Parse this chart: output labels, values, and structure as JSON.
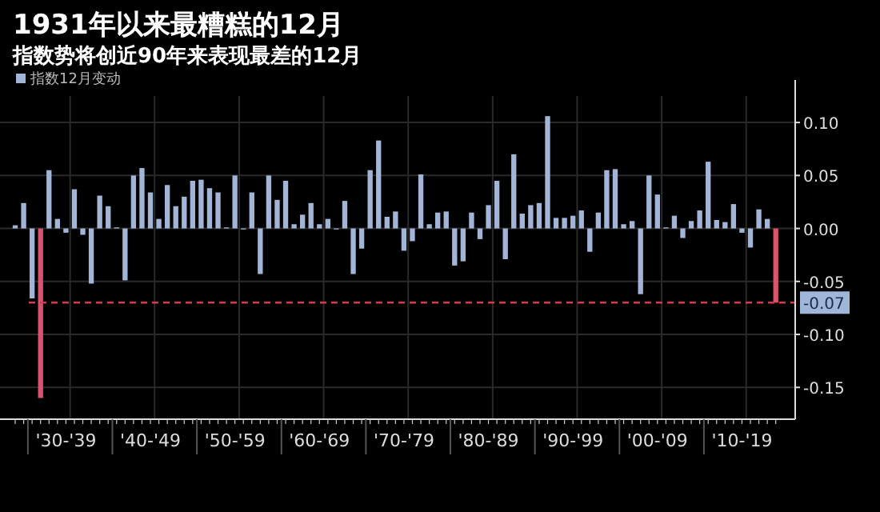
{
  "chart_data": {
    "type": "bar",
    "title": "1931年以来最糟糕的12月",
    "subtitle": "指数势将创近90年来表现最差的12月",
    "categories": [
      null,
      null,
      null,
      null,
      null,
      null,
      "'30-'39",
      null,
      null,
      null,
      null,
      null,
      null,
      null,
      null,
      null,
      "'40-'49",
      null,
      null,
      null,
      null,
      null,
      null,
      null,
      null,
      null,
      "'50-'59",
      null,
      null,
      null,
      null,
      null,
      null,
      null,
      null,
      null,
      "'60-'69",
      null,
      null,
      null,
      null,
      null,
      null,
      null,
      null,
      null,
      "'70-'79",
      null,
      null,
      null,
      null,
      null,
      null,
      null,
      null,
      null,
      "'80-'89",
      null,
      null,
      null,
      null,
      null,
      null,
      null,
      null,
      null,
      "'90-'99",
      null,
      null,
      null,
      null,
      null,
      null,
      null,
      null,
      null,
      "'00-'09",
      null,
      null,
      null,
      null,
      null,
      null,
      null,
      null,
      null,
      "'10-'19",
      null,
      null,
      null,
      null
    ],
    "series": [
      {
        "name": "指数12月变动",
        "color": "#a3b5d6",
        "values": [
          0.003,
          0.024,
          -0.066,
          -0.16,
          0.055,
          0.009,
          -0.004,
          0.037,
          -0.006,
          -0.052,
          0.031,
          0.021,
          0.001,
          -0.049,
          0.05,
          0.057,
          0.034,
          0.009,
          0.041,
          0.021,
          0.03,
          0.045,
          0.046,
          0.038,
          0.034,
          0.001,
          0.05,
          0.0,
          0.034,
          -0.043,
          0.05,
          0.027,
          0.045,
          0.004,
          0.013,
          0.024,
          0.004,
          0.009,
          0.0,
          0.026,
          -0.043,
          -0.019,
          0.055,
          0.083,
          0.011,
          0.016,
          -0.021,
          -0.012,
          0.051,
          0.004,
          0.015,
          0.016,
          -0.035,
          -0.031,
          0.015,
          -0.01,
          0.022,
          0.045,
          -0.029,
          0.07,
          0.014,
          0.022,
          0.024,
          0.106,
          0.01,
          0.01,
          0.012,
          0.017,
          -0.022,
          0.015,
          0.055,
          0.056,
          0.004,
          0.007,
          -0.062,
          0.05,
          0.032,
          0.001,
          0.012,
          -0.009,
          0.007,
          0.017,
          0.063,
          0.008,
          0.006,
          0.023,
          -0.004,
          -0.018,
          0.018,
          0.009,
          -0.07
        ],
        "colors": [
          "#a3b5d6",
          "#a3b5d6",
          "#a3b5d6",
          "#d9536e",
          "#a3b5d6",
          "#a3b5d6",
          "#a3b5d6",
          "#a3b5d6",
          "#a3b5d6",
          "#a3b5d6",
          "#a3b5d6",
          "#a3b5d6",
          "#a3b5d6",
          "#a3b5d6",
          "#a3b5d6",
          "#a3b5d6",
          "#a3b5d6",
          "#a3b5d6",
          "#a3b5d6",
          "#a3b5d6",
          "#a3b5d6",
          "#a3b5d6",
          "#a3b5d6",
          "#a3b5d6",
          "#a3b5d6",
          "#a3b5d6",
          "#a3b5d6",
          "#a3b5d6",
          "#a3b5d6",
          "#a3b5d6",
          "#a3b5d6",
          "#a3b5d6",
          "#a3b5d6",
          "#a3b5d6",
          "#a3b5d6",
          "#a3b5d6",
          "#a3b5d6",
          "#a3b5d6",
          "#a3b5d6",
          "#a3b5d6",
          "#a3b5d6",
          "#a3b5d6",
          "#a3b5d6",
          "#a3b5d6",
          "#a3b5d6",
          "#a3b5d6",
          "#a3b5d6",
          "#a3b5d6",
          "#a3b5d6",
          "#a3b5d6",
          "#a3b5d6",
          "#a3b5d6",
          "#a3b5d6",
          "#a3b5d6",
          "#a3b5d6",
          "#a3b5d6",
          "#a3b5d6",
          "#a3b5d6",
          "#a3b5d6",
          "#a3b5d6",
          "#a3b5d6",
          "#a3b5d6",
          "#a3b5d6",
          "#a3b5d6",
          "#a3b5d6",
          "#a3b5d6",
          "#a3b5d6",
          "#a3b5d6",
          "#a3b5d6",
          "#a3b5d6",
          "#a3b5d6",
          "#a3b5d6",
          "#a3b5d6",
          "#a3b5d6",
          "#a3b5d6",
          "#a3b5d6",
          "#a3b5d6",
          "#a3b5d6",
          "#a3b5d6",
          "#a3b5d6",
          "#a3b5d6",
          "#a3b5d6",
          "#a3b5d6",
          "#a3b5d6",
          "#a3b5d6",
          "#a3b5d6",
          "#a3b5d6",
          "#a3b5d6",
          "#a3b5d6",
          "#a3b5d6",
          "#d9536e"
        ]
      }
    ],
    "ylim": [
      -0.18,
      0.125
    ],
    "yticks": [
      {
        "value": 0.1,
        "label": "0.10"
      },
      {
        "value": 0.05,
        "label": "0.05"
      },
      {
        "value": 0,
        "label": "0.00"
      },
      {
        "value": -0.05,
        "label": "-0.05"
      },
      {
        "value": -0.1,
        "label": "-0.10"
      },
      {
        "value": -0.15,
        "label": "-0.15"
      }
    ],
    "ref_lines": [
      {
        "axis": "y",
        "value": -0.07,
        "label": "-0.07",
        "color": "#d9364f",
        "line_style": "dashed"
      }
    ],
    "grid": true,
    "legend": "top left"
  }
}
